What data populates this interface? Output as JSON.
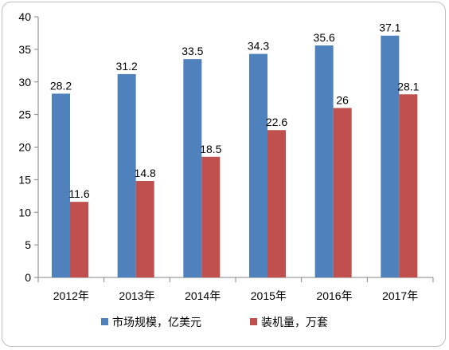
{
  "chart_data": {
    "type": "bar",
    "categories": [
      "2012年",
      "2013年",
      "2014年",
      "2015年",
      "2016年",
      "2017年"
    ],
    "series": [
      {
        "name": "市场规模，亿美元",
        "values": [
          28.2,
          31.2,
          33.5,
          34.3,
          35.6,
          37.1
        ],
        "color": "#4f81bd"
      },
      {
        "name": "装机量，万套",
        "values": [
          11.6,
          14.8,
          18.5,
          22.6,
          26,
          28.1
        ],
        "color": "#c0504d"
      }
    ],
    "data_labels": [
      [
        "28.2",
        "31.2",
        "33.5",
        "34.3",
        "35.6",
        "37.1"
      ],
      [
        "11.6",
        "14.8",
        "18.5",
        "22.6",
        "26",
        "28.1"
      ]
    ],
    "y_ticks": [
      0,
      5,
      10,
      15,
      20,
      25,
      30,
      35,
      40
    ],
    "ylim": [
      0,
      40
    ],
    "grid": false,
    "legend_position": "bottom",
    "title": "",
    "xlabel": "",
    "ylabel": ""
  }
}
